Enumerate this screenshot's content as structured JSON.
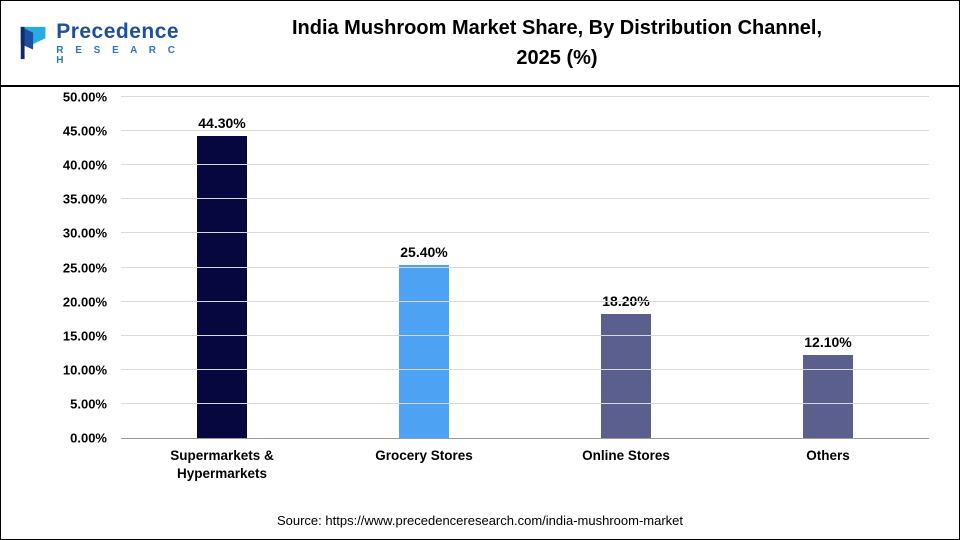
{
  "header": {
    "logo": {
      "brand_top": "Precedence",
      "brand_bottom": "R E S E A R C H"
    },
    "title_line1": "India Mushroom Market Share, By Distribution Channel,",
    "title_line2": "2025 (%)"
  },
  "chart_data": {
    "type": "bar",
    "title": "India Mushroom Market Share, By Distribution Channel, 2025 (%)",
    "categories": [
      "Supermarkets & Hypermarkets",
      "Grocery Stores",
      "Online Stores",
      "Others"
    ],
    "values": [
      44.3,
      25.4,
      18.2,
      12.1
    ],
    "data_labels": [
      "44.30%",
      "25.40%",
      "18.20%",
      "12.10%"
    ],
    "bar_colors": [
      "#070740",
      "#4da2f3",
      "#5a5f8e",
      "#5a5f8e"
    ],
    "xlabel": "",
    "ylabel": "",
    "ylim": [
      0,
      50
    ],
    "ytick_labels": [
      "0.00%",
      "5.00%",
      "10.00%",
      "15.00%",
      "20.00%",
      "25.00%",
      "30.00%",
      "35.00%",
      "40.00%",
      "45.00%",
      "50.00%"
    ],
    "grid": true,
    "legend": "none"
  },
  "footer": {
    "source": "Source: https://www.precedenceresearch.com/india-mushroom-market"
  }
}
